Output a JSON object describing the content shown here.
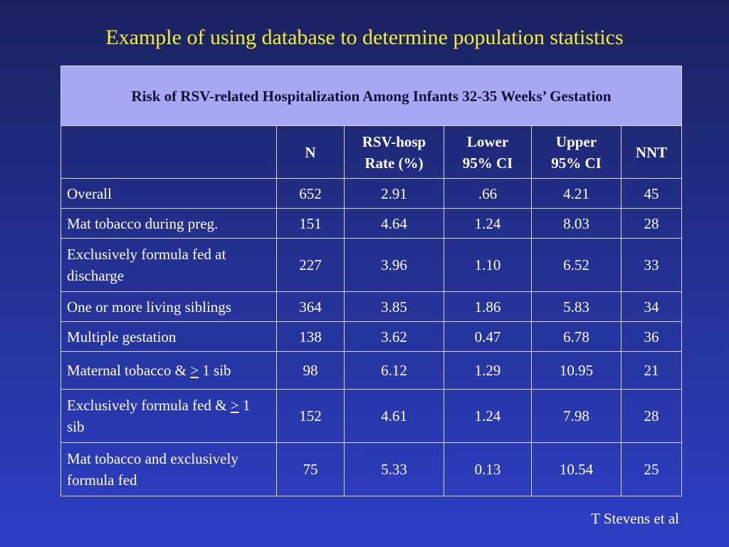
{
  "slide": {
    "title": "Example of using database to determine population statistics",
    "attribution": "T Stevens et al"
  },
  "table": {
    "caption": "Risk of RSV-related Hospitalization Among Infants 32-35 Weeks’ Gestation",
    "headers": {
      "label": "",
      "n": "N",
      "rate_line1": "RSV-hosp",
      "rate_line2": "Rate (%)",
      "lower_line1": "Lower",
      "lower_line2": "95% CI",
      "upper_line1": "Upper",
      "upper_line2": "95% CI",
      "nnt": "NNT"
    },
    "rows": [
      {
        "label": "Overall",
        "n": "652",
        "rate": "2.91",
        "lower": ".66",
        "upper": "4.21",
        "nnt": "45"
      },
      {
        "label": "Mat tobacco during preg.",
        "n": "151",
        "rate": "4.64",
        "lower": "1.24",
        "upper": "8.03",
        "nnt": "28"
      },
      {
        "label": "Exclusively formula fed at discharge",
        "n": "227",
        "rate": "3.96",
        "lower": "1.10",
        "upper": "6.52",
        "nnt": "33"
      },
      {
        "label": "One or more living siblings",
        "n": "364",
        "rate": "3.85",
        "lower": "1.86",
        "upper": "5.83",
        "nnt": "34"
      },
      {
        "label": "Multiple gestation",
        "n": "138",
        "rate": "3.62",
        "lower": "0.47",
        "upper": "6.78",
        "nnt": "36"
      },
      {
        "label_prefix": "Maternal tobacco & ",
        "label_symbol": ">",
        "label_suffix": " 1 sib",
        "n": "98",
        "rate": "6.12",
        "lower": "1.29",
        "upper": "10.95",
        "nnt": "21"
      },
      {
        "label_prefix": "Exclusively formula fed & ",
        "label_symbol": ">",
        "label_suffix": " 1 sib",
        "n": "152",
        "rate": "4.61",
        "lower": "1.24",
        "upper": "7.98",
        "nnt": "28"
      },
      {
        "label": "Mat tobacco and exclusively formula fed",
        "n": "75",
        "rate": "5.33",
        "lower": "0.13",
        "upper": "10.54",
        "nnt": "25"
      }
    ]
  }
}
